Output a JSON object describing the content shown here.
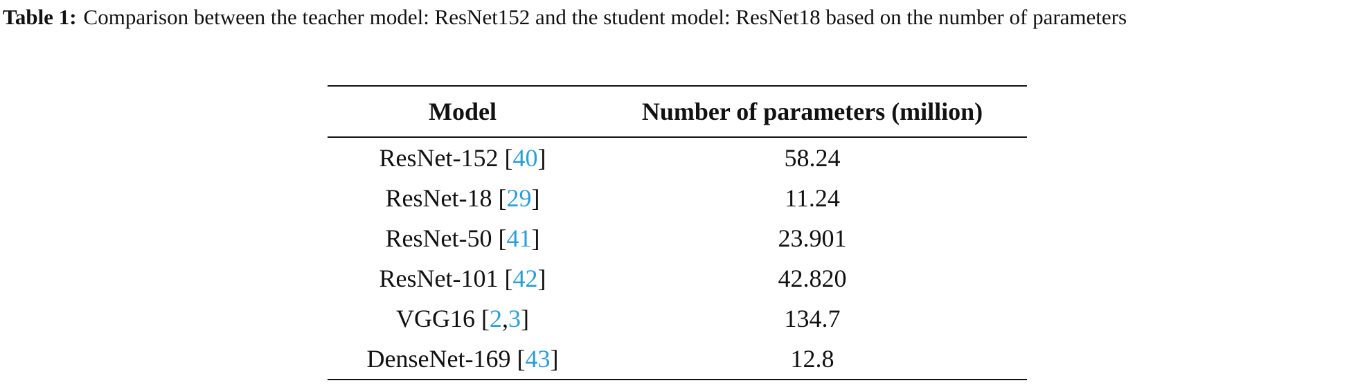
{
  "caption": {
    "label": "Table 1:",
    "text": "Comparison between the teacher model: ResNet152 and the student model: ResNet18 based on the number of parameters"
  },
  "table": {
    "headers": [
      "Model",
      "Number of parameters (million)"
    ],
    "rows": [
      {
        "model": "ResNet-152",
        "citation": "[40]",
        "parameters": "58.24"
      },
      {
        "model": "ResNet-18",
        "citation": "[29]",
        "parameters": "11.24"
      },
      {
        "model": "ResNet-50",
        "citation": "[41]",
        "parameters": "23.901"
      },
      {
        "model": "ResNet-101",
        "citation": "[42]",
        "parameters": "42.820"
      },
      {
        "model": "VGG16",
        "citation": "[2,3]",
        "parameters": "134.7"
      },
      {
        "model": "DenseNet-169",
        "citation": "[43]",
        "parameters": "12.8"
      }
    ]
  }
}
